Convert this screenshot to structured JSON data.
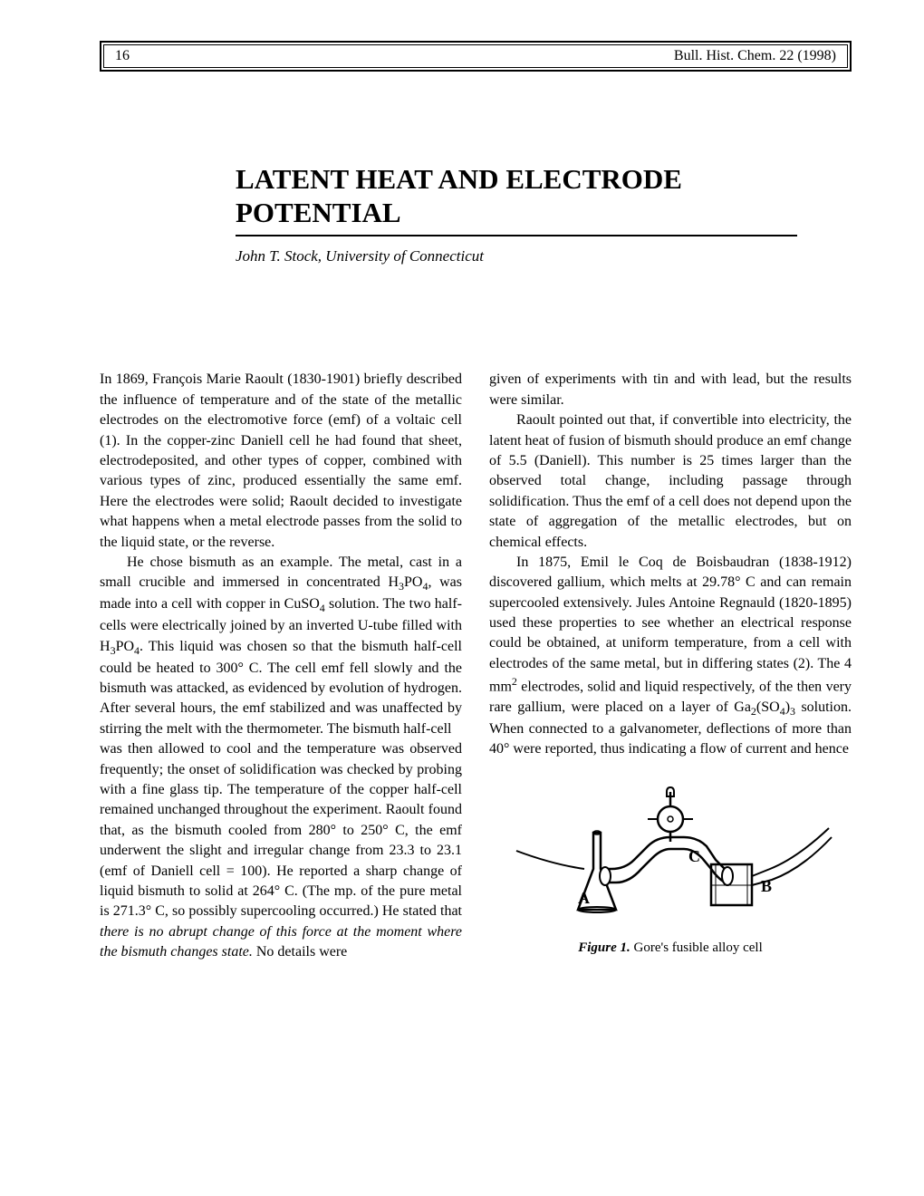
{
  "header": {
    "page_number": "16",
    "journal": "Bull. Hist. Chem. 22 (1998)"
  },
  "title": "LATENT HEAT AND ELECTRODE POTENTIAL",
  "author": "John T. Stock, University of Connecticut",
  "body": {
    "left_para1": "In 1869, François Marie Raoult (1830-1901) briefly described the influence of temperature and of the state of the metallic electrodes on the electromotive force (emf) of a voltaic cell (1). In the copper-zinc Daniell cell he had found that sheet, electrodeposited, and other types of copper, combined with various types of zinc, produced essentially the same emf. Here the electrodes were solid; Raoult decided to investigate what happens when a metal electrode passes from the solid to the liquid state, or the reverse.",
    "left_para2_html": "He chose bismuth as an example. The metal, cast in a small crucible and immersed in concentrated H<sub>3</sub>PO<sub>4</sub>, was made into a cell with copper in CuSO<sub>4</sub> solution. The two half-cells were electrically joined by an inverted U-tube filled with H<sub>3</sub>PO<sub>4</sub>. This liquid was chosen so that the bismuth half-cell could be heated to 300° C. The cell emf fell slowly and the bismuth was attacked, as evidenced by evolution of hydrogen. After several hours, the emf stabilized and was unaffected by stirring the melt with the thermometer. The bismuth half-cell",
    "left_para2_cont_html": "was then allowed to cool and the temperature was observed frequently; the onset of solidification was checked by probing with a fine glass tip. The temperature of the copper half-cell remained unchanged throughout the experiment. Raoult found that, as the bismuth cooled from 280° to 250° C, the emf underwent the slight and irregular change from 23.3 to 23.1 (emf of Daniell cell = 100). He reported a sharp change of liquid bismuth to solid at 264° C. (The mp. of the pure metal is 271.3° C, so possibly supercooling occurred.) He stated that <i>there is no abrupt change of this force at the moment where the bismuth changes state.</i> No details were",
    "right_para1": "given of experiments with tin and with lead, but the results were similar.",
    "right_para2": "Raoult pointed out that, if convertible into electricity, the latent heat of fusion of bismuth should produce an emf change of 5.5 (Daniell). This number is 25 times larger than the observed total change, including passage through solidification. Thus the emf of a cell does not depend upon the state of aggregation of the metallic electrodes, but on chemical effects.",
    "right_para3_html": "In 1875, Emil le Coq de Boisbaudran (1838-1912) discovered gallium, which melts at 29.78° C and can remain supercooled extensively. Jules Antoine Regnauld (1820-1895) used these properties to see whether an electrical response could be obtained, at uniform temperature, from a cell with electrodes of the same metal, but in differing states (2). The 4 mm<sup>2</sup> electrodes, solid and liquid respectively, of the then very rare gallium, were placed on a layer of Ga<sub>2</sub>(SO<sub>4</sub>)<sub>3</sub> solution. When connected to a galvanometer, deflections of more than 40° were reported, thus indicating a flow of current and hence"
  },
  "figure": {
    "label_a": "A",
    "label_b": "B",
    "label_c": "C",
    "caption_label": "Figure 1.",
    "caption_text": " Gore's fusible alloy cell"
  }
}
